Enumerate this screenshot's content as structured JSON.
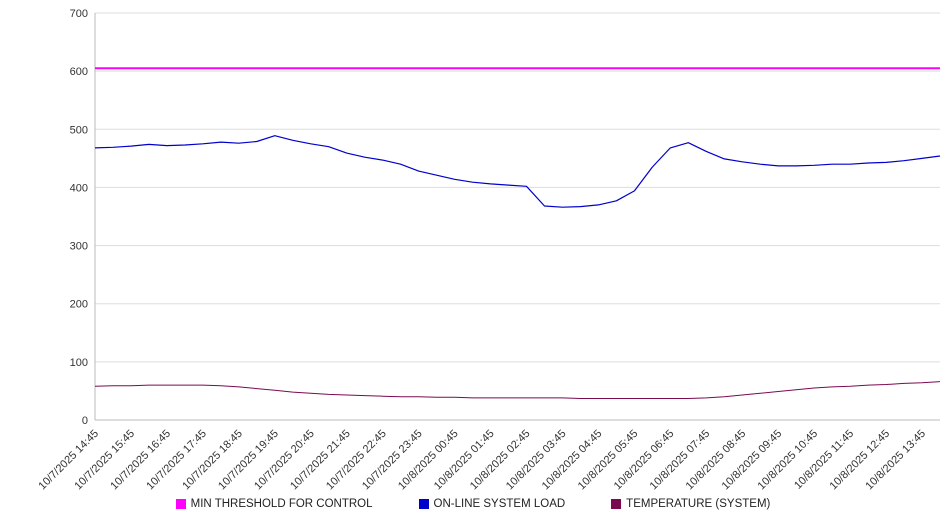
{
  "chart_data": {
    "type": "line",
    "title": "",
    "xlabel": "",
    "ylabel": "",
    "ylim": [
      0,
      700
    ],
    "ytick_step": 100,
    "grid": true,
    "legend_position": "bottom",
    "colors": {
      "grid": "#dddddd",
      "axis": "#bbbbbb",
      "text": "#333333",
      "background": "#ffffff"
    },
    "x_labels": [
      "10/7/2025 14:45",
      "10/7/2025 15:45",
      "10/7/2025 16:45",
      "10/7/2025 17:45",
      "10/7/2025 18:45",
      "10/7/2025 19:45",
      "10/7/2025 20:45",
      "10/7/2025 21:45",
      "10/7/2025 22:45",
      "10/7/2025 23:45",
      "10/8/2025 00:45",
      "10/8/2025 01:45",
      "10/8/2025 02:45",
      "10/8/2025 03:45",
      "10/8/2025 04:45",
      "10/8/2025 05:45",
      "10/8/2025 06:45",
      "10/8/2025 07:45",
      "10/8/2025 08:45",
      "10/8/2025 09:45",
      "10/8/2025 10:45",
      "10/8/2025 11:45",
      "10/8/2025 12:45",
      "10/8/2025 13:45"
    ],
    "x_count": 48,
    "label_step_points": 2,
    "series": [
      {
        "name": "MIN THRESHOLD FOR CONTROL",
        "color": "#ff00ff",
        "width": 2,
        "values": [
          605,
          605
        ]
      },
      {
        "name": "ON-LINE SYSTEM LOAD",
        "color": "#0000cc",
        "width": 1.2,
        "values": [
          468,
          469,
          471,
          474,
          472,
          473,
          475,
          478,
          476,
          479,
          489,
          481,
          475,
          470,
          459,
          452,
          447,
          440,
          428,
          421,
          414,
          409,
          406,
          404,
          402,
          368,
          366,
          367,
          370,
          377,
          394,
          435,
          468,
          477,
          462,
          449,
          444,
          440,
          437,
          437,
          438,
          440,
          440,
          442,
          443,
          446,
          450,
          454
        ]
      },
      {
        "name": "TEMPERATURE (SYSTEM)",
        "color": "#7a0a50",
        "width": 1,
        "values": [
          58,
          59,
          59,
          60,
          60,
          60,
          60,
          59,
          57,
          54,
          51,
          48,
          46,
          44,
          43,
          42,
          41,
          40,
          40,
          39,
          39,
          38,
          38,
          38,
          38,
          38,
          38,
          37,
          37,
          37,
          37,
          37,
          37,
          37,
          38,
          40,
          43,
          46,
          49,
          52,
          55,
          57,
          58,
          60,
          61,
          63,
          64,
          66
        ]
      }
    ]
  }
}
